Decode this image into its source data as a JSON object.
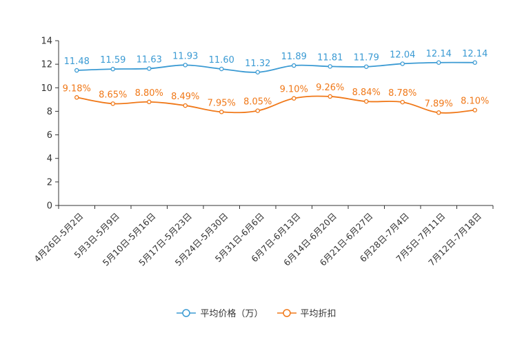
{
  "chart_data": {
    "type": "line",
    "title": "",
    "xlabel": "",
    "ylabel": "",
    "ylim": [
      0,
      14
    ],
    "yticks": [
      0,
      2,
      4,
      6,
      8,
      10,
      12,
      14
    ],
    "categories": [
      "4月26日-5月2日",
      "5月3日-5月9日",
      "5月10日-5月16日",
      "5月17日-5月23日",
      "5月24日-5月30日",
      "5月31日-6月6日",
      "6月7日-6月13日",
      "6月14日-6月20日",
      "6月21日-6月27日",
      "6月28日-7月4日",
      "7月5日-7月11日",
      "7月12日-7月18日"
    ],
    "series": [
      {
        "name": "平均价格（万）",
        "color": "#3a9ad3",
        "values": [
          11.48,
          11.59,
          11.63,
          11.93,
          11.6,
          11.32,
          11.89,
          11.81,
          11.79,
          12.04,
          12.14,
          12.14
        ],
        "labels": [
          "11.48",
          "11.59",
          "11.63",
          "11.93",
          "11.60",
          "11.32",
          "11.89",
          "11.81",
          "11.79",
          "12.04",
          "12.14",
          "12.14"
        ]
      },
      {
        "name": "平均折扣",
        "color": "#f07818",
        "values": [
          9.18,
          8.65,
          8.8,
          8.49,
          7.95,
          8.05,
          9.1,
          9.26,
          8.84,
          8.78,
          7.89,
          8.1
        ],
        "labels": [
          "9.18%",
          "8.65%",
          "8.80%",
          "8.49%",
          "7.95%",
          "8.05%",
          "9.10%",
          "9.26%",
          "8.84%",
          "8.78%",
          "7.89%",
          "8.10%"
        ]
      }
    ],
    "legend_position": "bottom-center"
  }
}
